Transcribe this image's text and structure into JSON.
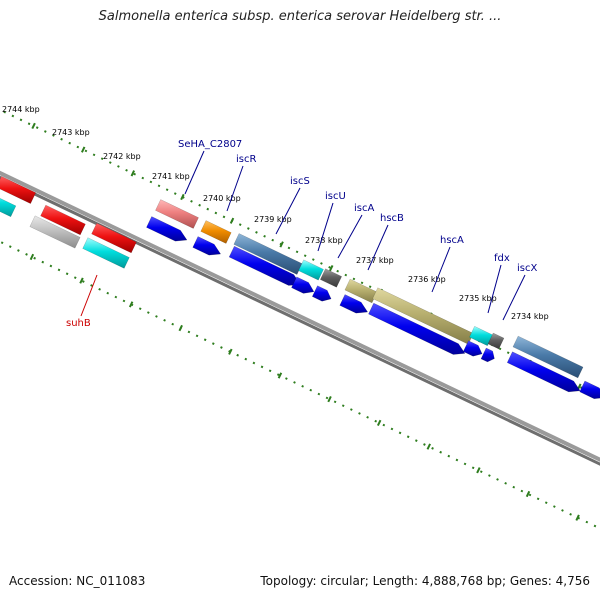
{
  "title": "Salmonella enterica subsp. enterica serovar Heidelberg str. ...",
  "footer": {
    "accession": "Accession: NC_011083",
    "summary": "Topology: circular; Length: 4,888,768 bp; Genes: 4,756"
  },
  "ticks": [
    "2744 kbp",
    "2743 kbp",
    "2742 kbp",
    "2741 kbp",
    "2740 kbp",
    "2739 kbp",
    "2738 kbp",
    "2737 kbp",
    "2736 kbp",
    "2735 kbp",
    "2734 kbp"
  ],
  "genes": [
    {
      "name": "SeHA_C2807",
      "color": "#00008b"
    },
    {
      "name": "iscR",
      "color": "#00008b"
    },
    {
      "name": "iscS",
      "color": "#00008b"
    },
    {
      "name": "iscU",
      "color": "#00008b"
    },
    {
      "name": "iscA",
      "color": "#00008b"
    },
    {
      "name": "hscB",
      "color": "#00008b"
    },
    {
      "name": "hscA",
      "color": "#00008b"
    },
    {
      "name": "fdx",
      "color": "#00008b"
    },
    {
      "name": "iscX",
      "color": "#00008b"
    },
    {
      "name": "suhB",
      "color": "#cc0000"
    }
  ],
  "colors": {
    "cds": "#0000ee",
    "backbone": "#888888",
    "tick_dots": "#2e7d1e",
    "red": "#ee1111",
    "cyan": "#00dddd",
    "grey": "#c0c0c0",
    "pink": "#ee8080",
    "orange": "#f08c00",
    "steel": "#4a7aa8",
    "olive": "#b8b070",
    "darkgrey": "#606060"
  }
}
